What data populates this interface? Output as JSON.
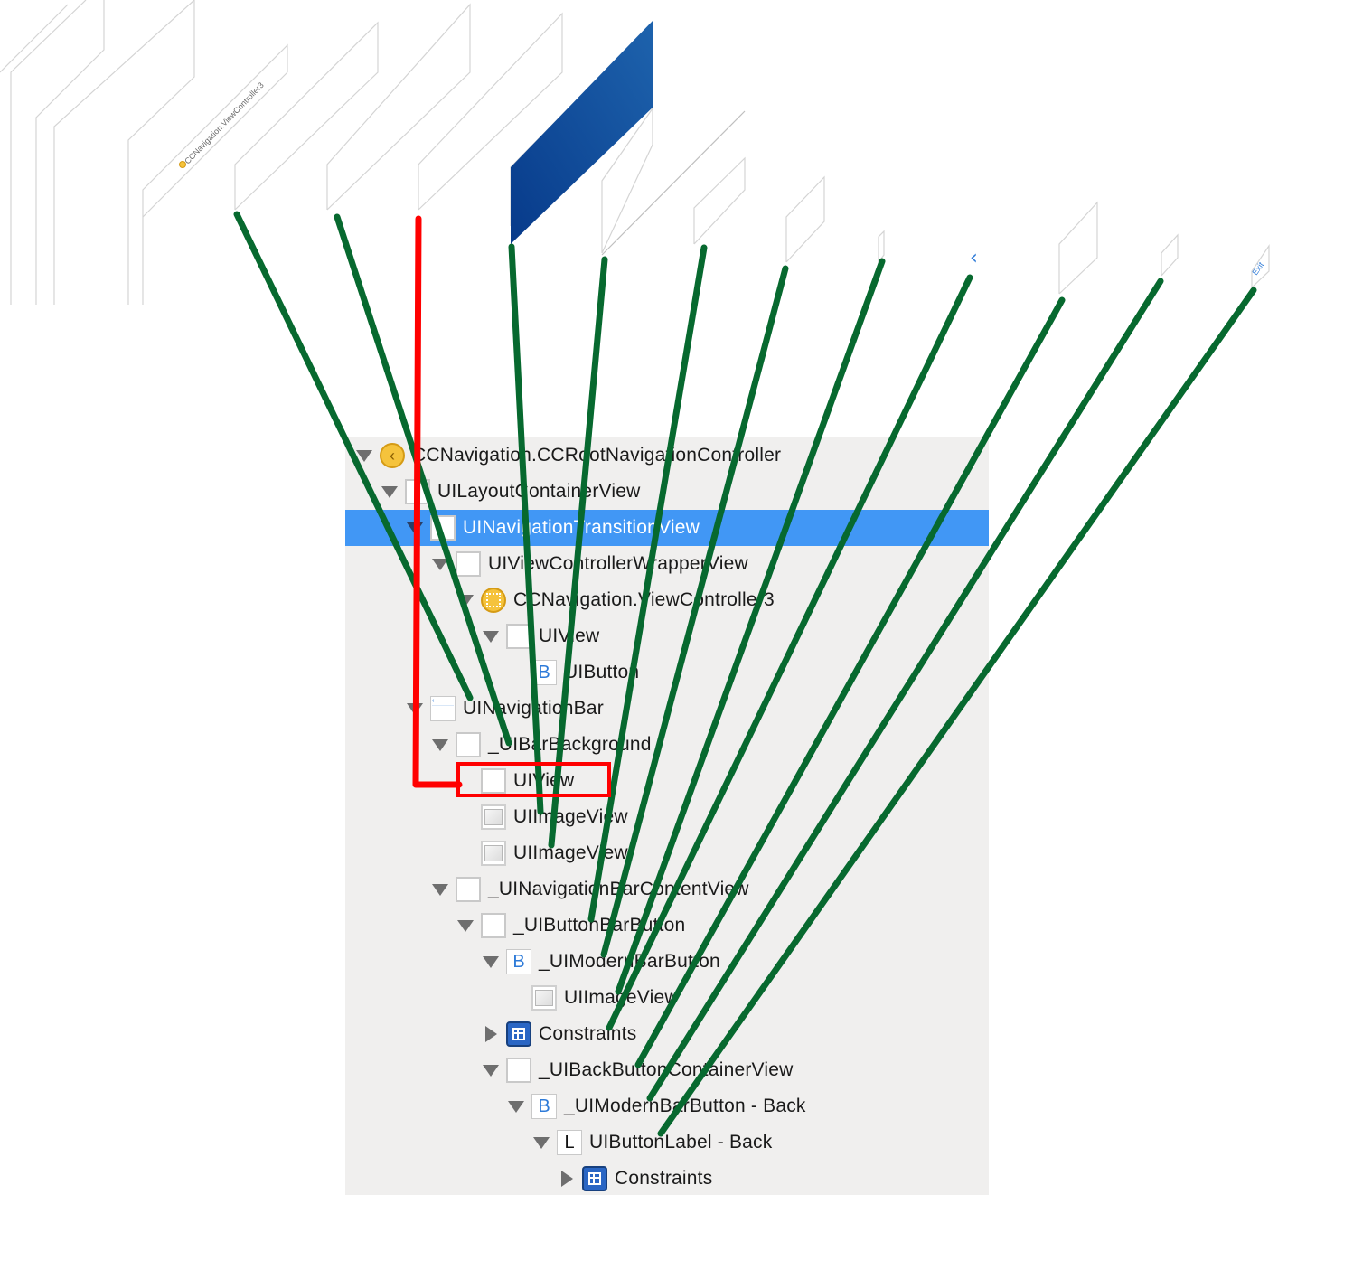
{
  "scene": {
    "controller_caption": "CCNavigation.ViewController3",
    "exit_caption": "Exit"
  },
  "tree": [
    {
      "label": "CCNavigation.CCRootNavigationController",
      "depth": 0,
      "expander": "down",
      "icon": "nav-controller-icon",
      "selected": false
    },
    {
      "label": "UILayoutContainerView",
      "depth": 1,
      "expander": "down",
      "icon": "view-icon",
      "selected": false
    },
    {
      "label": "UINavigationTransitionView",
      "depth": 2,
      "expander": "down",
      "icon": "view-icon",
      "selected": true
    },
    {
      "label": "UIViewControllerWrapperView",
      "depth": 3,
      "expander": "down",
      "icon": "view-icon",
      "selected": false
    },
    {
      "label": "CCNavigation.ViewController3",
      "depth": 4,
      "expander": "down",
      "icon": "view-controller-icon",
      "selected": false
    },
    {
      "label": "UIView",
      "depth": 5,
      "expander": "down",
      "icon": "view-icon",
      "selected": false
    },
    {
      "label": "UIButton",
      "depth": 6,
      "expander": "none",
      "icon": "button-icon",
      "selected": false
    },
    {
      "label": "UINavigationBar",
      "depth": 2,
      "expander": "down",
      "icon": "navigation-bar-icon",
      "selected": false
    },
    {
      "label": "_UIBarBackground",
      "depth": 3,
      "expander": "down",
      "icon": "view-icon",
      "selected": false
    },
    {
      "label": "UIView",
      "depth": 4,
      "expander": "none",
      "icon": "view-icon",
      "selected": false
    },
    {
      "label": "UIImageView",
      "depth": 4,
      "expander": "none",
      "icon": "image-view-icon",
      "selected": false
    },
    {
      "label": "UIImageView",
      "depth": 4,
      "expander": "none",
      "icon": "image-view-icon",
      "selected": false
    },
    {
      "label": "_UINavigationBarContentView",
      "depth": 3,
      "expander": "down",
      "icon": "view-icon",
      "selected": false
    },
    {
      "label": "_UIButtonBarButton",
      "depth": 4,
      "expander": "down",
      "icon": "view-icon",
      "selected": false
    },
    {
      "label": "_UIModernBarButton",
      "depth": 5,
      "expander": "down",
      "icon": "button-icon",
      "selected": false
    },
    {
      "label": "UIImageView",
      "depth": 6,
      "expander": "none",
      "icon": "image-view-icon",
      "selected": false
    },
    {
      "label": "Constraints",
      "depth": 5,
      "expander": "right",
      "icon": "constraints-icon",
      "selected": false
    },
    {
      "label": "_UIBackButtonContainerView",
      "depth": 5,
      "expander": "down",
      "icon": "view-icon",
      "selected": false
    },
    {
      "label": "_UIModernBarButton - Back",
      "depth": 6,
      "expander": "down",
      "icon": "button-icon",
      "selected": false
    },
    {
      "label": "UIButtonLabel - Back",
      "depth": 7,
      "expander": "down",
      "icon": "label-icon",
      "selected": false
    },
    {
      "label": "Constraints",
      "depth": 8,
      "expander": "right",
      "icon": "constraints-icon",
      "selected": false
    }
  ],
  "colors": {
    "connector": "#07692f",
    "highlight": "#ff0000",
    "selection": "#4197f5",
    "nav_bar_layer": "#0d4796"
  }
}
